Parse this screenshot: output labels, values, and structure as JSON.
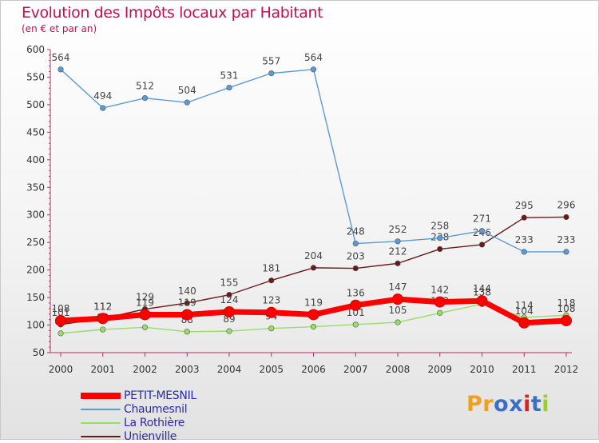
{
  "chart_data": {
    "type": "line",
    "title": "Evolution des Impôts locaux par Habitant",
    "subtitle": "(en € et par an)",
    "xlabel": "",
    "ylabel": "",
    "ylim": [
      50,
      600
    ],
    "yticks": [
      50,
      100,
      150,
      200,
      250,
      300,
      350,
      400,
      450,
      500,
      550,
      600
    ],
    "grid": false,
    "legend_position": "bottom-left",
    "categories": [
      "2000",
      "2001",
      "2002",
      "2003",
      "2004",
      "2005",
      "2006",
      "2007",
      "2008",
      "2009",
      "2010",
      "2011",
      "2012"
    ],
    "series": [
      {
        "name": "Unienville",
        "color": "#6b1a1a",
        "values": [
          101,
          112,
          129,
          140,
          155,
          181,
          204,
          203,
          212,
          238,
          246,
          295,
          296
        ]
      },
      {
        "name": "La Rothière",
        "color": "#99dd66",
        "values": [
          85,
          92,
          96,
          88,
          89,
          94,
          97,
          101,
          105,
          122,
          138,
          114,
          118
        ]
      },
      {
        "name": "Chaumesnil",
        "color": "#5b9bd5",
        "values": [
          564,
          494,
          512,
          504,
          531,
          557,
          564,
          248,
          252,
          258,
          271,
          233,
          233
        ]
      },
      {
        "name": "PETIT-MESNIL",
        "color": "#ff0000",
        "values": [
          108,
          112,
          119,
          119,
          124,
          123,
          119,
          136,
          147,
          142,
          144,
          104,
          108
        ]
      }
    ],
    "legend_order": [
      "PETIT-MESNIL",
      "Chaumesnil",
      "La Rothière",
      "Unienville"
    ]
  },
  "brand": {
    "text": "Proxiti",
    "letters": [
      {
        "ch": "P",
        "color": "#f0a020"
      },
      {
        "ch": "r",
        "color": "#f0a020"
      },
      {
        "ch": "o",
        "color": "#3a6fc4"
      },
      {
        "ch": "x",
        "color": "#3a6fc4"
      },
      {
        "ch": "i",
        "color": "#e02020"
      },
      {
        "ch": "t",
        "color": "#3a6fc4"
      },
      {
        "ch": "i",
        "color": "#9acd32"
      }
    ]
  }
}
